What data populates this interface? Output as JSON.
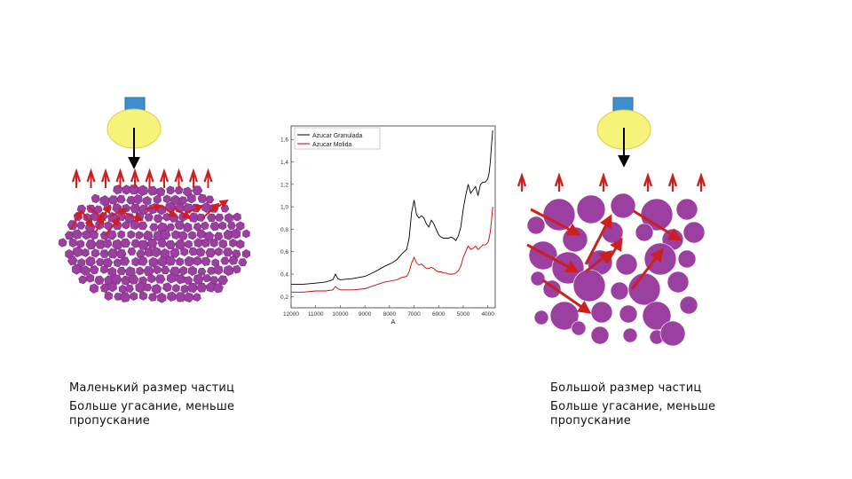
{
  "left_caption": {
    "line1": "Маленький размер частиц",
    "line2": "Больше угасание, меньше пропускание"
  },
  "right_caption": {
    "line1": "Большой размер частиц",
    "line2": "Больше угасание, меньше пропускание"
  },
  "colors": {
    "particle": "#9b3fa0",
    "particle_edge": "#7a2a80",
    "arrow": "#cc1f1f",
    "lamp": "#f7f27a",
    "lamp_cap": "#3f8fd0",
    "series_granulada": "#000000",
    "series_molida": "#cc0000"
  },
  "chart_data": {
    "type": "line",
    "xlabel": "A",
    "ylabel": "",
    "xlim": [
      12000,
      3700
    ],
    "ylim": [
      0.1,
      1.72
    ],
    "xticks": [
      12000,
      11000,
      10000,
      9000,
      8000,
      7000,
      6000,
      5000,
      4000
    ],
    "xtick_labels": [
      "12000",
      "11000",
      "10000",
      "9000",
      "8000",
      "7000",
      "6000",
      "5000",
      "4000"
    ],
    "yticks": [
      0.2,
      0.4,
      0.6,
      0.8,
      1.0,
      1.2,
      1.4,
      1.6
    ],
    "ytick_labels": [
      "0,2",
      "0,4",
      "0,6",
      "0,8",
      "1,0",
      "1,2",
      "1,4",
      "1,6"
    ],
    "legend": "top-left",
    "grid": false,
    "series": [
      {
        "name": "Azucar Granulada",
        "x": [
          12000,
          11500,
          11000,
          10600,
          10300,
          10200,
          10100,
          10000,
          9500,
          9000,
          8600,
          8200,
          7900,
          7700,
          7500,
          7300,
          7200,
          7100,
          7000,
          6900,
          6800,
          6700,
          6600,
          6500,
          6400,
          6300,
          6200,
          6100,
          6000,
          5900,
          5800,
          5700,
          5600,
          5500,
          5400,
          5300,
          5200,
          5100,
          5000,
          4900,
          4800,
          4700,
          4600,
          4500,
          4400,
          4300,
          4200,
          4100,
          4000,
          3950,
          3900,
          3850,
          3800
        ],
        "y": [
          0.31,
          0.31,
          0.32,
          0.33,
          0.35,
          0.4,
          0.36,
          0.35,
          0.36,
          0.38,
          0.42,
          0.47,
          0.5,
          0.53,
          0.58,
          0.62,
          0.72,
          0.95,
          1.06,
          0.93,
          0.9,
          0.92,
          0.9,
          0.85,
          0.82,
          0.88,
          0.85,
          0.8,
          0.75,
          0.73,
          0.72,
          0.72,
          0.72,
          0.73,
          0.72,
          0.7,
          0.74,
          0.82,
          0.98,
          1.1,
          1.2,
          1.12,
          1.15,
          1.18,
          1.1,
          1.2,
          1.22,
          1.22,
          1.25,
          1.3,
          1.4,
          1.55,
          1.68
        ]
      },
      {
        "name": "Azucar Molida",
        "x": [
          12000,
          11500,
          11000,
          10600,
          10300,
          10200,
          10100,
          10000,
          9500,
          9000,
          8600,
          8200,
          7900,
          7700,
          7500,
          7300,
          7200,
          7100,
          7000,
          6900,
          6800,
          6700,
          6600,
          6500,
          6400,
          6300,
          6200,
          6100,
          6000,
          5900,
          5800,
          5700,
          5600,
          5500,
          5400,
          5300,
          5200,
          5100,
          5000,
          4900,
          4800,
          4700,
          4600,
          4500,
          4400,
          4300,
          4200,
          4100,
          4000,
          3950,
          3900,
          3850,
          3800
        ],
        "y": [
          0.24,
          0.24,
          0.25,
          0.25,
          0.26,
          0.29,
          0.27,
          0.26,
          0.26,
          0.27,
          0.3,
          0.33,
          0.34,
          0.35,
          0.37,
          0.38,
          0.42,
          0.5,
          0.55,
          0.5,
          0.48,
          0.49,
          0.47,
          0.45,
          0.45,
          0.46,
          0.45,
          0.43,
          0.42,
          0.42,
          0.41,
          0.41,
          0.4,
          0.4,
          0.4,
          0.41,
          0.43,
          0.47,
          0.55,
          0.6,
          0.65,
          0.62,
          0.63,
          0.65,
          0.62,
          0.64,
          0.66,
          0.66,
          0.68,
          0.72,
          0.78,
          0.88,
          1.0
        ]
      }
    ]
  }
}
